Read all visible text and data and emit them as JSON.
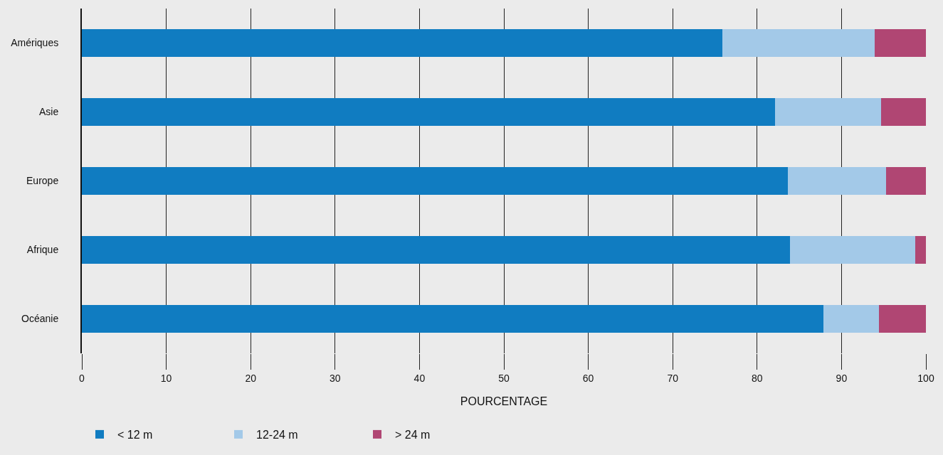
{
  "chart_data": {
    "type": "bar",
    "orientation": "horizontal",
    "stacked": true,
    "xlabel": "POURCENTAGE",
    "categories": [
      "Amériques",
      "Asie",
      "Europe",
      "Afrique",
      "Océanie"
    ],
    "series": [
      {
        "name": "< 12 m",
        "color": "#107cc1",
        "values": [
          75.9,
          82.1,
          83.6,
          83.9,
          87.9
        ]
      },
      {
        "name": "12-24 m",
        "color": "#a3c9e8",
        "values": [
          18.0,
          12.6,
          11.7,
          14.8,
          6.5
        ]
      },
      {
        "name": "> 24 m",
        "color": "#b04673",
        "values": [
          6.1,
          5.3,
          4.7,
          1.3,
          5.6
        ]
      }
    ],
    "xlim": [
      0,
      100
    ],
    "xticks": [
      0,
      10,
      20,
      30,
      40,
      50,
      60,
      70,
      80,
      90,
      100
    ],
    "grid": "x",
    "legend": "bottom left"
  }
}
